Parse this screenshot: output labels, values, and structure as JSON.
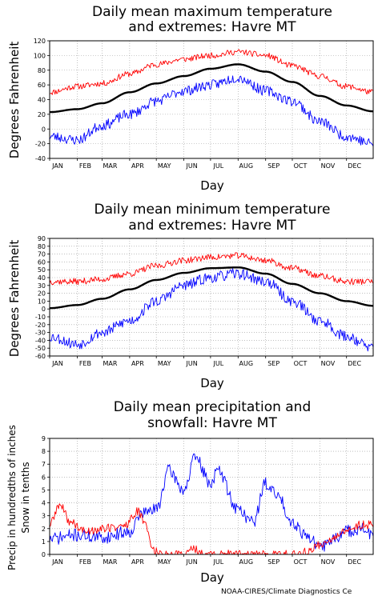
{
  "credit": "NOAA-CIRES/Climate Diagnostics Ce",
  "colors": {
    "observed": "#ff0000",
    "extreme_low": "#0000ff",
    "mean": "#000000",
    "grid": "#999999"
  },
  "chart_data": [
    {
      "type": "line",
      "title_line1": "Daily mean maximum temperature",
      "title_line2": "and extremes: Havre MT",
      "xlabel": "Day",
      "ylabel": "Degrees Fahrenheit",
      "ylim": [
        -40,
        120
      ],
      "yticks": [
        -40,
        -20,
        0,
        20,
        40,
        60,
        80,
        100,
        120
      ],
      "months": [
        "JAN",
        "FEB",
        "MAR",
        "APR",
        "MAY",
        "JUN",
        "JUL",
        "AUG",
        "SEP",
        "OCT",
        "NOV",
        "DEC"
      ],
      "grid": true,
      "series": [
        {
          "color": "#ff0000",
          "noise": 4,
          "seed": 11,
          "keys": [
            [
              1,
              50
            ],
            [
              32,
              58
            ],
            [
              60,
              62
            ],
            [
              91,
              75
            ],
            [
              121,
              88
            ],
            [
              152,
              95
            ],
            [
              182,
              100
            ],
            [
              213,
              105
            ],
            [
              244,
              100
            ],
            [
              274,
              86
            ],
            [
              305,
              72
            ],
            [
              335,
              58
            ],
            [
              365,
              50
            ]
          ]
        },
        {
          "color": "#000000",
          "noise": 0,
          "seed": 0,
          "keys": [
            [
              1,
              23
            ],
            [
              32,
              27
            ],
            [
              60,
              35
            ],
            [
              91,
              50
            ],
            [
              121,
              62
            ],
            [
              152,
              72
            ],
            [
              182,
              82
            ],
            [
              213,
              88
            ],
            [
              244,
              78
            ],
            [
              274,
              64
            ],
            [
              305,
              45
            ],
            [
              335,
              32
            ],
            [
              365,
              24
            ]
          ]
        },
        {
          "color": "#0000ff",
          "noise": 7,
          "seed": 23,
          "keys": [
            [
              1,
              -10
            ],
            [
              32,
              -15
            ],
            [
              60,
              5
            ],
            [
              91,
              20
            ],
            [
              121,
              38
            ],
            [
              152,
              52
            ],
            [
              182,
              60
            ],
            [
              213,
              70
            ],
            [
              244,
              52
            ],
            [
              274,
              38
            ],
            [
              305,
              10
            ],
            [
              335,
              -10
            ],
            [
              365,
              -20
            ]
          ]
        }
      ]
    },
    {
      "type": "line",
      "title_line1": "Daily mean minimum temperature",
      "title_line2": "and extremes: Havre MT",
      "xlabel": "Day",
      "ylabel": "Degrees Fahrenheit",
      "ylim": [
        -60,
        90
      ],
      "yticks": [
        -60,
        -50,
        -40,
        -30,
        -20,
        -10,
        0,
        10,
        20,
        30,
        40,
        50,
        60,
        70,
        80,
        90
      ],
      "months": [
        "JAN",
        "FEB",
        "MAR",
        "APR",
        "MAY",
        "JUN",
        "JUL",
        "AUG",
        "SEP",
        "OCT",
        "NOV",
        "DEC"
      ],
      "grid": true,
      "series": [
        {
          "color": "#ff0000",
          "noise": 4,
          "seed": 37,
          "keys": [
            [
              1,
              35
            ],
            [
              32,
              35
            ],
            [
              60,
              38
            ],
            [
              91,
              45
            ],
            [
              121,
              55
            ],
            [
              152,
              62
            ],
            [
              182,
              66
            ],
            [
              213,
              68
            ],
            [
              244,
              62
            ],
            [
              274,
              52
            ],
            [
              305,
              42
            ],
            [
              335,
              35
            ],
            [
              365,
              35
            ]
          ]
        },
        {
          "color": "#000000",
          "noise": 0,
          "seed": 0,
          "keys": [
            [
              1,
              1
            ],
            [
              32,
              5
            ],
            [
              60,
              13
            ],
            [
              91,
              25
            ],
            [
              121,
              37
            ],
            [
              152,
              46
            ],
            [
              182,
              52
            ],
            [
              213,
              53
            ],
            [
              244,
              45
            ],
            [
              274,
              32
            ],
            [
              305,
              20
            ],
            [
              335,
              10
            ],
            [
              365,
              4
            ]
          ]
        },
        {
          "color": "#0000ff",
          "noise": 7,
          "seed": 53,
          "keys": [
            [
              1,
              -35
            ],
            [
              32,
              -45
            ],
            [
              60,
              -30
            ],
            [
              91,
              -15
            ],
            [
              121,
              10
            ],
            [
              152,
              30
            ],
            [
              182,
              40
            ],
            [
              213,
              45
            ],
            [
              244,
              35
            ],
            [
              274,
              10
            ],
            [
              305,
              -15
            ],
            [
              335,
              -35
            ],
            [
              365,
              -50
            ]
          ]
        }
      ]
    },
    {
      "type": "line",
      "title_line1": "Daily mean precipitation and",
      "title_line2": "snowfall: Havre MT",
      "xlabel": "Day",
      "ylabel": "Precip in hundredths of inches",
      "ylabel2": "Snow in tenths",
      "ylim": [
        0,
        9
      ],
      "yticks": [
        0,
        1,
        2,
        3,
        4,
        5,
        6,
        7,
        8,
        9
      ],
      "months": [
        "JAN",
        "FEB",
        "MAR",
        "APR",
        "MAY",
        "JUN",
        "JUL",
        "AUG",
        "SEP",
        "OCT",
        "NOV",
        "DEC"
      ],
      "grid": true,
      "series": [
        {
          "color": "#0000ff",
          "noise": 0.5,
          "seed": 71,
          "keys": [
            [
              1,
              1.2
            ],
            [
              32,
              1.5
            ],
            [
              60,
              1.3
            ],
            [
              91,
              1.8
            ],
            [
              105,
              3.2
            ],
            [
              121,
              3.5
            ],
            [
              135,
              6.5
            ],
            [
              152,
              5.0
            ],
            [
              165,
              7.5
            ],
            [
              182,
              5.5
            ],
            [
              190,
              6.5
            ],
            [
              213,
              3.5
            ],
            [
              230,
              2.5
            ],
            [
              244,
              5.5
            ],
            [
              258,
              4.5
            ],
            [
              274,
              2.5
            ],
            [
              290,
              1.5
            ],
            [
              305,
              0.5
            ],
            [
              320,
              1.2
            ],
            [
              335,
              1.8
            ],
            [
              350,
              2.0
            ],
            [
              365,
              1.5
            ]
          ]
        },
        {
          "color": "#ff0000",
          "noise": 0.35,
          "seed": 89,
          "keys": [
            [
              1,
              2.3
            ],
            [
              12,
              3.8
            ],
            [
              25,
              2.5
            ],
            [
              40,
              1.8
            ],
            [
              60,
              2.0
            ],
            [
              85,
              2.2
            ],
            [
              100,
              3.3
            ],
            [
              110,
              2.2
            ],
            [
              117,
              0.4
            ],
            [
              125,
              0.05
            ],
            [
              135,
              0.0
            ],
            [
              152,
              0.0
            ],
            [
              160,
              0.4
            ],
            [
              165,
              0.4
            ],
            [
              170,
              0.0
            ],
            [
              213,
              0.0
            ],
            [
              250,
              0.0
            ],
            [
              275,
              0.0
            ],
            [
              290,
              0.15
            ],
            [
              305,
              0.8
            ],
            [
              320,
              1.2
            ],
            [
              335,
              1.8
            ],
            [
              350,
              2.3
            ],
            [
              365,
              2.3
            ]
          ]
        }
      ]
    }
  ]
}
